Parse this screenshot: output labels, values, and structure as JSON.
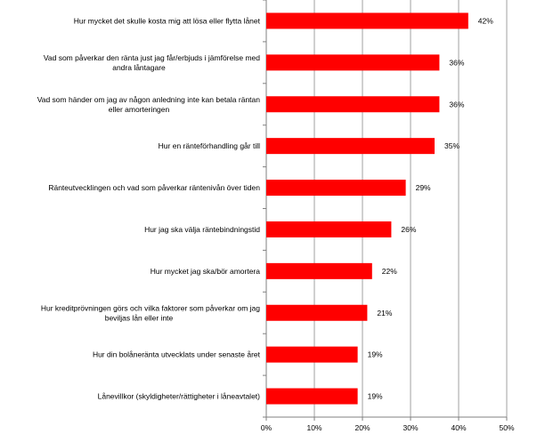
{
  "chart_data": {
    "type": "bar",
    "orientation": "horizontal",
    "title": "",
    "xlabel": "",
    "ylabel": "",
    "categories": [
      [
        "Hur mycket det skulle kosta mig att lösa eller flytta lånet"
      ],
      [
        "Vad som påverkar den ränta just jag får/erbjuds i jämförelse med",
        "andra låntagare"
      ],
      [
        "Vad som händer om jag av någon anledning inte kan betala räntan",
        "eller amorteringen"
      ],
      [
        "Hur en ränteförhandling går till"
      ],
      [
        "Ränteutvecklingen och vad som påverkar räntenivån över tiden"
      ],
      [
        "Hur jag ska välja räntebindningstid"
      ],
      [
        "Hur mycket jag ska/bör amortera"
      ],
      [
        "Hur kreditprövningen görs och vilka faktorer som påverkar om jag",
        "beviljas lån eller inte"
      ],
      [
        "Hur din bolåneränta utvecklats under senaste året"
      ],
      [
        "Lånevillkor (skyldigheter/rättigheter i låneavtalet)"
      ]
    ],
    "values": [
      42,
      36,
      36,
      35,
      29,
      26,
      22,
      21,
      19,
      19
    ],
    "value_labels": [
      "42%",
      "36%",
      "36%",
      "35%",
      "29%",
      "26%",
      "22%",
      "21%",
      "19%",
      "19%"
    ],
    "xlim": [
      0,
      50
    ],
    "x_ticks": [
      "0%",
      "10%",
      "20%",
      "30%",
      "40%",
      "50%"
    ],
    "grid": true,
    "bar_color": "#ff0000"
  }
}
